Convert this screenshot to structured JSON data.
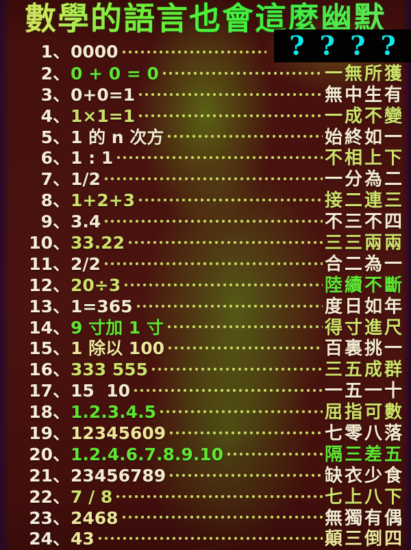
{
  "title": "數學的語言也會這麼幽默",
  "separator": "、",
  "hidden_answer": {
    "marks": [
      "?",
      "?",
      "?",
      "?"
    ]
  },
  "colors": {
    "background_maroon": "#45100e",
    "glow_green": "#5aa01e",
    "text_cream": "#f4ecd2",
    "text_yellow": "#ece79b",
    "text_lime": "#cde26a",
    "text_green": "#5fe632",
    "question_cyan": "#0deaea",
    "hidden_box_black": "#020202"
  },
  "rows": [
    {
      "num": "1",
      "expr": "0000",
      "answer": "",
      "hidden": true,
      "expr_tone": "cream",
      "ans_tone": "cream"
    },
    {
      "num": "2",
      "expr": "0 + 0 = 0",
      "answer": "一無所獲",
      "hidden": false,
      "expr_tone": "green",
      "ans_tone": "lime"
    },
    {
      "num": "3",
      "expr": "0+0=1",
      "answer": "無中生有",
      "hidden": false,
      "expr_tone": "cream",
      "ans_tone": "cream"
    },
    {
      "num": "4",
      "expr": "1×1=1",
      "answer": "一成不變",
      "hidden": false,
      "expr_tone": "lime",
      "ans_tone": "lime"
    },
    {
      "num": "5",
      "expr": "1 的 n 次方",
      "answer": "始終如一",
      "hidden": false,
      "expr_tone": "cream",
      "ans_tone": "cream"
    },
    {
      "num": "6",
      "expr": "1 : 1",
      "answer": "不相上下",
      "hidden": false,
      "expr_tone": "cream",
      "ans_tone": "lime"
    },
    {
      "num": "7",
      "expr": "1/2",
      "answer": "一分為二",
      "hidden": false,
      "expr_tone": "cream",
      "ans_tone": "cream"
    },
    {
      "num": "8",
      "expr": "1+2+3",
      "answer": "接二連三",
      "hidden": false,
      "expr_tone": "lime",
      "ans_tone": "lime"
    },
    {
      "num": "9",
      "expr": "3.4",
      "answer": "不三不四",
      "hidden": false,
      "expr_tone": "cream",
      "ans_tone": "cream"
    },
    {
      "num": "10",
      "expr": "33.22",
      "answer": "三三兩兩",
      "hidden": false,
      "expr_tone": "lime",
      "ans_tone": "lime"
    },
    {
      "num": "11",
      "expr": "2/2",
      "answer": "合二為一",
      "hidden": false,
      "expr_tone": "cream",
      "ans_tone": "cream"
    },
    {
      "num": "12",
      "expr": "20÷3",
      "answer": "陸續不斷",
      "hidden": false,
      "expr_tone": "lime",
      "ans_tone": "green"
    },
    {
      "num": "13",
      "expr": "1=365",
      "answer": "度日如年",
      "hidden": false,
      "expr_tone": "cream",
      "ans_tone": "cream"
    },
    {
      "num": "14",
      "expr": "9 寸加 1 寸",
      "answer": "得寸進尺",
      "hidden": false,
      "expr_tone": "green",
      "ans_tone": "lime"
    },
    {
      "num": "15",
      "expr": "1 除以 100",
      "answer": "百裏挑一",
      "hidden": false,
      "expr_tone": "yellow",
      "ans_tone": "cream"
    },
    {
      "num": "16",
      "expr": "333 555",
      "answer": "三五成群",
      "hidden": false,
      "expr_tone": "lime",
      "ans_tone": "lime"
    },
    {
      "num": "17",
      "expr": "15  10",
      "answer": "一五一十",
      "hidden": false,
      "expr_tone": "cream",
      "ans_tone": "cream"
    },
    {
      "num": "18",
      "expr": "1.2.3.4.5",
      "answer": "屈指可數",
      "hidden": false,
      "expr_tone": "green",
      "ans_tone": "lime"
    },
    {
      "num": "19",
      "expr": "12345609",
      "answer": "七零八落",
      "hidden": false,
      "expr_tone": "yellow",
      "ans_tone": "cream"
    },
    {
      "num": "20",
      "expr": "1.2.4.6.7.8.9.10",
      "answer": "隔三差五",
      "hidden": false,
      "expr_tone": "green",
      "ans_tone": "green"
    },
    {
      "num": "21",
      "expr": "23456789",
      "answer": "缺衣少食",
      "hidden": false,
      "expr_tone": "cream",
      "ans_tone": "cream"
    },
    {
      "num": "22",
      "expr": "7 / 8",
      "answer": "七上八下",
      "hidden": false,
      "expr_tone": "lime",
      "ans_tone": "lime"
    },
    {
      "num": "23",
      "expr": "2468",
      "answer": "無獨有偶",
      "hidden": false,
      "expr_tone": "yellow",
      "ans_tone": "cream"
    },
    {
      "num": "24",
      "expr": "43",
      "answer": "顛三倒四",
      "hidden": false,
      "expr_tone": "yellow",
      "ans_tone": "yellow"
    }
  ]
}
